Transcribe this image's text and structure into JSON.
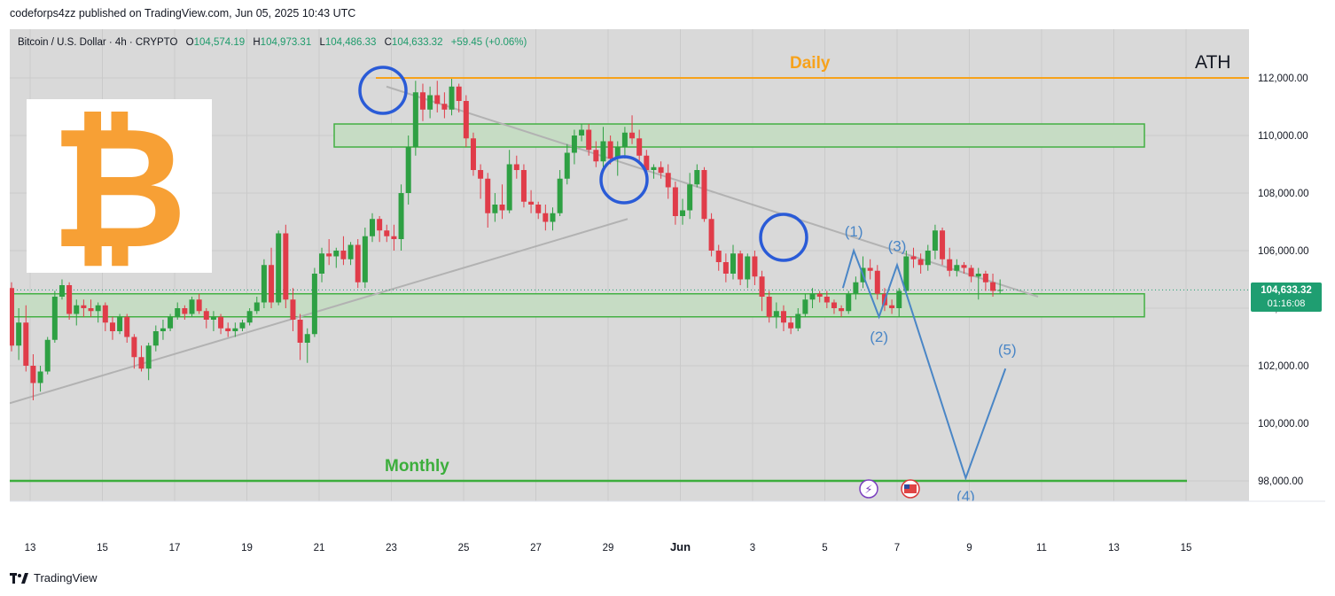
{
  "header": {
    "caption": "codeforps4zz published on TradingView.com, Jun 05, 2025 10:43 UTC"
  },
  "legend": {
    "symbol": "Bitcoin / U.S. Dollar · 4h · CRYPTO",
    "o_label": "O",
    "o_value": "104,574.19",
    "h_label": "H",
    "h_value": "104,973.31",
    "l_label": "L",
    "l_value": "104,486.33",
    "c_label": "C",
    "c_value": "104,633.32",
    "change": "+59.45 (+0.06%)"
  },
  "annotations": {
    "daily": "Daily",
    "ath": "ATH",
    "monthly": "Monthly",
    "wave_labels": [
      "(1)",
      "(2)",
      "(3)",
      "(4)",
      "(5)"
    ]
  },
  "price_badge": {
    "price": "104,633.32",
    "countdown": "01:16:08"
  },
  "footer": {
    "brand": "TradingView"
  },
  "colors": {
    "plot_bg": "#d9d9d9",
    "up": "#2ea043",
    "down": "#e03c49",
    "daily_line": "#f7a21b",
    "monthly_line": "#3cae3c",
    "zone_fill": "#c6dcc4",
    "zone_stroke": "#43b043",
    "trendline": "#b2b2b2",
    "wave": "#4a86c6",
    "circle": "#2a5bd7",
    "badge": "#1f9e71",
    "bitcoin": "#f7a035"
  },
  "chart_data": {
    "type": "candlestick",
    "title": "Bitcoin / U.S. Dollar · 4h · CRYPTO",
    "ylim": [
      97000,
      113500
    ],
    "y_ticks": [
      "112,000.00",
      "110,000.00",
      "108,000.00",
      "106,000.00",
      "104,000.00",
      "102,000.00",
      "100,000.00",
      "98,000.00"
    ],
    "y_tick_values": [
      112000,
      110000,
      108000,
      106000,
      104000,
      102000,
      100000,
      98000
    ],
    "x_ticks": [
      "13",
      "15",
      "17",
      "19",
      "21",
      "23",
      "25",
      "27",
      "29",
      "Jun",
      "3",
      "5",
      "7",
      "9",
      "11",
      "13",
      "15"
    ],
    "x_tick_days": [
      0,
      2,
      4,
      6,
      8,
      10,
      12,
      14,
      16,
      18,
      20,
      22,
      24,
      26,
      28,
      30,
      32
    ],
    "grid": true,
    "levels": {
      "daily": 112000,
      "monthly": 98000,
      "upper_zone": [
        109600,
        110400
      ],
      "lower_zone": [
        103700,
        104500
      ]
    },
    "wave_path": [
      {
        "label": "",
        "day": 22.5,
        "price": 104700
      },
      {
        "label": "(1)",
        "day": 22.8,
        "price": 106000
      },
      {
        "label": "(2)",
        "day": 23.5,
        "price": 103700
      },
      {
        "label": "(3)",
        "day": 24.0,
        "price": 105500
      },
      {
        "label": "(4)",
        "day": 25.9,
        "price": 98100
      },
      {
        "label": "(5)",
        "day": 27.0,
        "price": 101900
      }
    ],
    "candles": [
      [
        104700,
        104900,
        102500,
        102700
      ],
      [
        102700,
        104000,
        102200,
        103500
      ],
      [
        103500,
        104100,
        101800,
        102000
      ],
      [
        102000,
        102400,
        100800,
        101400
      ],
      [
        101400,
        102000,
        101100,
        101800
      ],
      [
        101800,
        103000,
        101700,
        102900
      ],
      [
        102900,
        104600,
        102800,
        104400
      ],
      [
        104400,
        105000,
        104300,
        104800
      ],
      [
        104800,
        104900,
        103600,
        103800
      ],
      [
        103800,
        104300,
        103400,
        104100
      ],
      [
        104100,
        104300,
        103700,
        104000
      ],
      [
        104000,
        104300,
        103700,
        103900
      ],
      [
        103900,
        104200,
        103500,
        104100
      ],
      [
        104100,
        104200,
        103200,
        103500
      ],
      [
        103500,
        103700,
        102900,
        103200
      ],
      [
        103200,
        103800,
        103100,
        103700
      ],
      [
        103700,
        103800,
        102800,
        103000
      ],
      [
        103000,
        103100,
        101900,
        102300
      ],
      [
        102300,
        102700,
        101800,
        101900
      ],
      [
        101900,
        102800,
        101500,
        102700
      ],
      [
        102700,
        103400,
        102500,
        103200
      ],
      [
        103200,
        103600,
        102900,
        103300
      ],
      [
        103300,
        103800,
        103200,
        103700
      ],
      [
        103700,
        104200,
        103600,
        104000
      ],
      [
        104000,
        104100,
        103600,
        103800
      ],
      [
        103800,
        104400,
        103700,
        104300
      ],
      [
        104300,
        104500,
        103800,
        103900
      ],
      [
        103900,
        104000,
        103300,
        103600
      ],
      [
        103600,
        103900,
        103200,
        103700
      ],
      [
        103700,
        103800,
        103100,
        103300
      ],
      [
        103300,
        103500,
        103000,
        103200
      ],
      [
        103200,
        103500,
        103000,
        103300
      ],
      [
        103300,
        103600,
        103200,
        103500
      ],
      [
        103500,
        104000,
        103400,
        103900
      ],
      [
        103900,
        104400,
        103800,
        104200
      ],
      [
        104200,
        105700,
        104000,
        105500
      ],
      [
        105500,
        106100,
        104000,
        104200
      ],
      [
        104200,
        106700,
        104100,
        106600
      ],
      [
        106600,
        106900,
        104000,
        104300
      ],
      [
        104300,
        104700,
        103200,
        103600
      ],
      [
        103600,
        103800,
        102200,
        102800
      ],
      [
        102800,
        103300,
        102100,
        103100
      ],
      [
        103100,
        105400,
        103000,
        105200
      ],
      [
        105200,
        106100,
        104900,
        105900
      ],
      [
        105900,
        106400,
        105500,
        105800
      ],
      [
        105800,
        106100,
        105400,
        106000
      ],
      [
        106000,
        106500,
        105500,
        105700
      ],
      [
        105700,
        106300,
        105500,
        106200
      ],
      [
        106200,
        106400,
        104700,
        104900
      ],
      [
        104900,
        106800,
        104700,
        106500
      ],
      [
        106500,
        107300,
        106300,
        107100
      ],
      [
        107100,
        107200,
        106300,
        106700
      ],
      [
        106700,
        106900,
        106300,
        106500
      ],
      [
        106500,
        106900,
        106000,
        106400
      ],
      [
        106400,
        108300,
        106000,
        108000
      ],
      [
        108000,
        110000,
        107600,
        109600
      ],
      [
        109600,
        111900,
        109300,
        111500
      ],
      [
        111500,
        111800,
        110500,
        110900
      ],
      [
        110900,
        111700,
        110600,
        111400
      ],
      [
        111400,
        111900,
        110800,
        111100
      ],
      [
        111100,
        111500,
        110600,
        110900
      ],
      [
        110900,
        112000,
        110700,
        111700
      ],
      [
        111700,
        111800,
        110800,
        111200
      ],
      [
        111200,
        111400,
        109600,
        109900
      ],
      [
        109900,
        110100,
        108600,
        108800
      ],
      [
        108800,
        109000,
        107800,
        108500
      ],
      [
        108500,
        108700,
        106800,
        107300
      ],
      [
        107300,
        108000,
        107000,
        107600
      ],
      [
        107600,
        108300,
        107100,
        107400
      ],
      [
        107400,
        109500,
        107300,
        109000
      ],
      [
        109000,
        109300,
        108500,
        108800
      ],
      [
        108800,
        109000,
        107500,
        107700
      ],
      [
        107700,
        108100,
        107300,
        107600
      ],
      [
        107600,
        107700,
        107100,
        107300
      ],
      [
        107300,
        107600,
        106700,
        107000
      ],
      [
        107000,
        107500,
        106700,
        107300
      ],
      [
        107300,
        108800,
        107200,
        108500
      ],
      [
        108500,
        109700,
        108300,
        109400
      ],
      [
        109400,
        110200,
        109000,
        110000
      ],
      [
        110000,
        110400,
        109800,
        110200
      ],
      [
        110200,
        110400,
        109300,
        109500
      ],
      [
        109500,
        109800,
        108900,
        109100
      ],
      [
        109100,
        110300,
        108900,
        109800
      ],
      [
        109800,
        110000,
        109000,
        109200
      ],
      [
        109200,
        109800,
        108600,
        109600
      ],
      [
        109600,
        110300,
        109200,
        110100
      ],
      [
        110100,
        110700,
        109700,
        109900
      ],
      [
        109900,
        110200,
        109000,
        109300
      ],
      [
        109300,
        109500,
        108600,
        108800
      ],
      [
        108800,
        109000,
        108500,
        108900
      ],
      [
        108900,
        109100,
        108500,
        108700
      ],
      [
        108700,
        109000,
        107800,
        108200
      ],
      [
        108200,
        108400,
        106900,
        107200
      ],
      [
        107200,
        107800,
        106900,
        107400
      ],
      [
        107400,
        108700,
        107100,
        108300
      ],
      [
        108300,
        109000,
        108200,
        108800
      ],
      [
        108800,
        108900,
        107000,
        107100
      ],
      [
        107100,
        107300,
        105800,
        106000
      ],
      [
        106000,
        106200,
        105300,
        105600
      ],
      [
        105600,
        105900,
        104900,
        105200
      ],
      [
        105200,
        106200,
        105000,
        105900
      ],
      [
        105900,
        106000,
        104800,
        105000
      ],
      [
        105000,
        105900,
        104700,
        105800
      ],
      [
        105800,
        106000,
        104800,
        105100
      ],
      [
        105100,
        105300,
        103900,
        104400
      ],
      [
        104400,
        104600,
        103500,
        103700
      ],
      [
        103700,
        104200,
        103300,
        103900
      ],
      [
        103900,
        104100,
        103200,
        103500
      ],
      [
        103500,
        103700,
        103100,
        103300
      ],
      [
        103300,
        104000,
        103200,
        103800
      ],
      [
        103800,
        104500,
        103700,
        104300
      ],
      [
        104300,
        104700,
        104000,
        104500
      ],
      [
        104500,
        104600,
        104200,
        104400
      ],
      [
        104400,
        104600,
        104000,
        104200
      ],
      [
        104200,
        104300,
        103800,
        104000
      ],
      [
        104000,
        104100,
        103700,
        103900
      ],
      [
        103900,
        104600,
        103800,
        104500
      ],
      [
        104500,
        105100,
        104300,
        104900
      ],
      [
        104900,
        105800,
        104700,
        105400
      ],
      [
        105400,
        105700,
        105000,
        105300
      ],
      [
        105300,
        105500,
        104300,
        104500
      ],
      [
        104500,
        104700,
        103900,
        104100
      ],
      [
        104100,
        104300,
        103800,
        104000
      ],
      [
        104000,
        104700,
        103700,
        104600
      ],
      [
        104600,
        106000,
        104500,
        105800
      ],
      [
        105800,
        106100,
        105400,
        105700
      ],
      [
        105700,
        105900,
        105200,
        105500
      ],
      [
        105500,
        106200,
        105300,
        106000
      ],
      [
        106000,
        106900,
        105700,
        106700
      ],
      [
        106700,
        106800,
        105500,
        105700
      ],
      [
        105700,
        106100,
        105100,
        105300
      ],
      [
        105300,
        105700,
        105100,
        105500
      ],
      [
        105500,
        105600,
        105200,
        105400
      ],
      [
        105400,
        105500,
        104900,
        105100
      ],
      [
        105100,
        105400,
        104300,
        105200
      ],
      [
        105200,
        105300,
        104600,
        104900
      ],
      [
        104900,
        105200,
        104400,
        104600
      ],
      [
        104600,
        105000,
        104500,
        104633
      ]
    ]
  }
}
